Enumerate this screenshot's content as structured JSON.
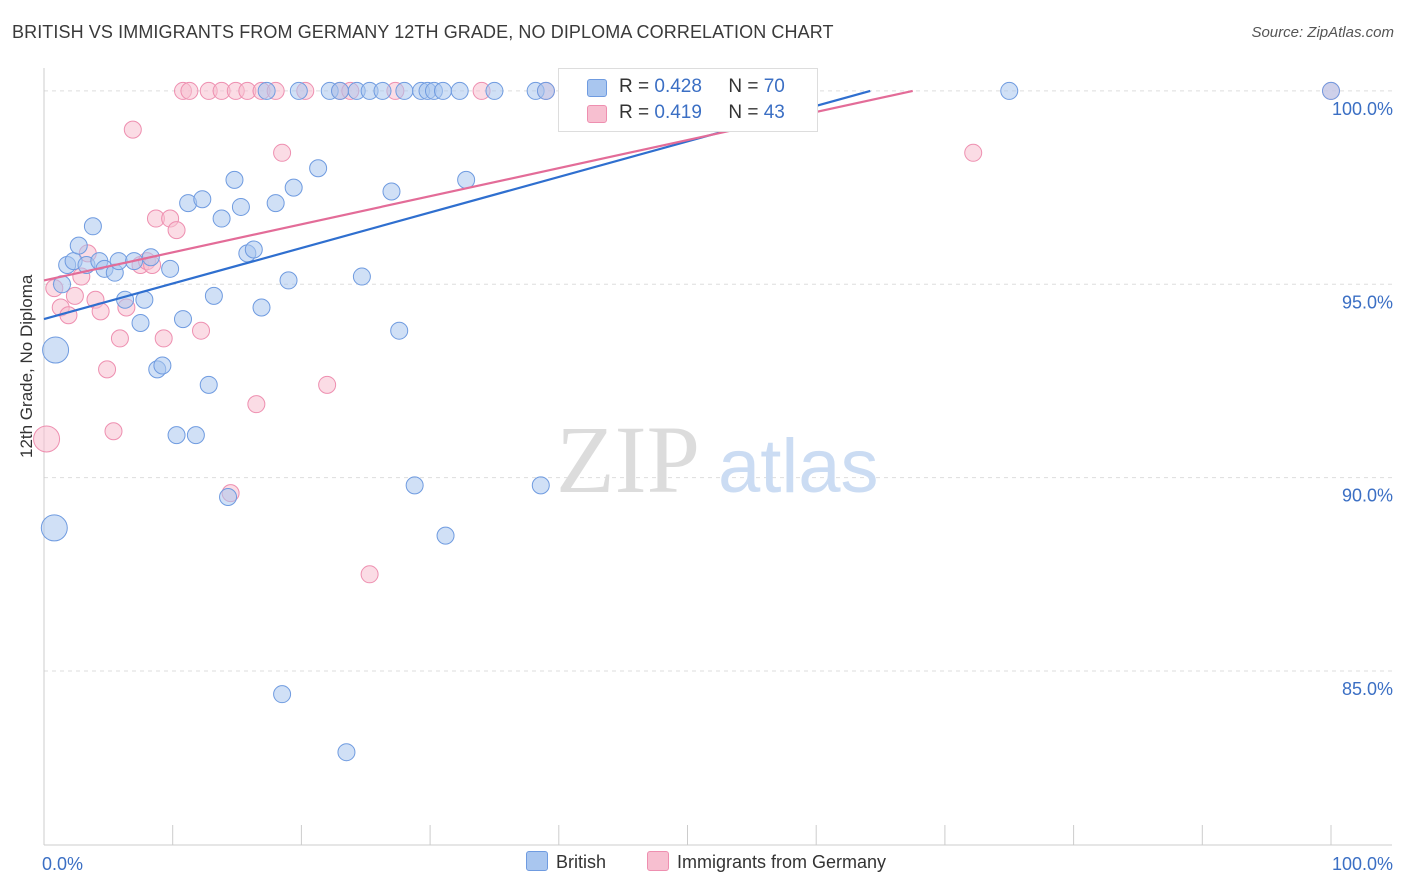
{
  "title": "BRITISH VS IMMIGRANTS FROM GERMANY 12TH GRADE, NO DIPLOMA CORRELATION CHART",
  "source": "Source: ZipAtlas.com",
  "watermark": {
    "zip": "ZIP",
    "atlas": "atlas"
  },
  "colors": {
    "blue_fill": "#a9c6ef",
    "blue_stroke": "#6f9be0",
    "blue_line": "#2f6fcf",
    "pink_fill": "#f7bfd0",
    "pink_stroke": "#ee8fb0",
    "pink_line": "#e36c98",
    "accent_text": "#3b6fc4"
  },
  "legend": {
    "rows": [
      {
        "r_label": "R =",
        "r_value": "0.428",
        "n_label": "N =",
        "n_value": "70"
      },
      {
        "r_label": "R =",
        "r_value": "0.419",
        "n_label": "N =",
        "n_value": "43"
      }
    ]
  },
  "bottom_legend": {
    "series1": "British",
    "series2": "Immigrants from Germany"
  },
  "chart_data": {
    "type": "scatter",
    "title": "BRITISH VS IMMIGRANTS FROM GERMANY 12TH GRADE, NO DIPLOMA CORRELATION CHART",
    "xlabel": "",
    "ylabel": "12th Grade, No Diploma",
    "xlim": [
      0,
      100
    ],
    "ylim": [
      80.5,
      100.8
    ],
    "x_tick_labels": [
      "0.0%",
      "100.0%"
    ],
    "y_ticks": [
      {
        "value": 100,
        "label": "100.0%"
      },
      {
        "value": 95,
        "label": "95.0%"
      },
      {
        "value": 90,
        "label": "90.0%"
      },
      {
        "value": 85,
        "label": "85.0%"
      }
    ],
    "grid": true,
    "legend_position": "top-center",
    "series": [
      {
        "name": "British",
        "trend": {
          "x": [
            0,
            64.2
          ],
          "y": [
            94.1,
            100.0
          ]
        },
        "points": [
          {
            "x": 0.8,
            "y": 88.7,
            "big": 1
          },
          {
            "x": 0.9,
            "y": 93.3,
            "big": 1
          },
          {
            "x": 1.4,
            "y": 95.0
          },
          {
            "x": 1.8,
            "y": 95.5
          },
          {
            "x": 2.3,
            "y": 95.6
          },
          {
            "x": 2.7,
            "y": 96.0
          },
          {
            "x": 3.3,
            "y": 95.5
          },
          {
            "x": 3.8,
            "y": 96.5
          },
          {
            "x": 4.3,
            "y": 95.6
          },
          {
            "x": 4.7,
            "y": 95.4
          },
          {
            "x": 5.5,
            "y": 95.3
          },
          {
            "x": 5.8,
            "y": 95.6
          },
          {
            "x": 6.3,
            "y": 94.6
          },
          {
            "x": 7.0,
            "y": 95.6
          },
          {
            "x": 7.5,
            "y": 94.0
          },
          {
            "x": 7.8,
            "y": 94.6
          },
          {
            "x": 8.3,
            "y": 95.7
          },
          {
            "x": 8.8,
            "y": 92.8
          },
          {
            "x": 9.2,
            "y": 92.9
          },
          {
            "x": 9.8,
            "y": 95.4
          },
          {
            "x": 10.3,
            "y": 91.1
          },
          {
            "x": 10.8,
            "y": 94.1
          },
          {
            "x": 11.2,
            "y": 97.1
          },
          {
            "x": 11.8,
            "y": 91.1
          },
          {
            "x": 12.3,
            "y": 97.2
          },
          {
            "x": 12.8,
            "y": 92.4
          },
          {
            "x": 13.2,
            "y": 94.7
          },
          {
            "x": 13.8,
            "y": 96.7
          },
          {
            "x": 14.3,
            "y": 89.5
          },
          {
            "x": 14.8,
            "y": 97.7
          },
          {
            "x": 15.3,
            "y": 97.0
          },
          {
            "x": 15.8,
            "y": 95.8
          },
          {
            "x": 16.3,
            "y": 95.9
          },
          {
            "x": 16.9,
            "y": 94.4
          },
          {
            "x": 17.3,
            "y": 100.0
          },
          {
            "x": 18.0,
            "y": 97.1
          },
          {
            "x": 18.5,
            "y": 84.4
          },
          {
            "x": 19.0,
            "y": 95.1
          },
          {
            "x": 19.4,
            "y": 97.5
          },
          {
            "x": 19.8,
            "y": 100.0
          },
          {
            "x": 21.3,
            "y": 98.0
          },
          {
            "x": 22.2,
            "y": 100.0
          },
          {
            "x": 23.0,
            "y": 100.0
          },
          {
            "x": 23.5,
            "y": 82.9
          },
          {
            "x": 24.3,
            "y": 100.0
          },
          {
            "x": 24.7,
            "y": 95.2
          },
          {
            "x": 25.3,
            "y": 100.0
          },
          {
            "x": 26.3,
            "y": 100.0
          },
          {
            "x": 27.0,
            "y": 97.4
          },
          {
            "x": 27.6,
            "y": 93.8
          },
          {
            "x": 28.0,
            "y": 100.0
          },
          {
            "x": 28.8,
            "y": 89.8
          },
          {
            "x": 29.3,
            "y": 100.0
          },
          {
            "x": 29.8,
            "y": 100.0
          },
          {
            "x": 30.3,
            "y": 100.0
          },
          {
            "x": 31.0,
            "y": 100.0
          },
          {
            "x": 31.2,
            "y": 88.5
          },
          {
            "x": 32.3,
            "y": 100.0
          },
          {
            "x": 32.8,
            "y": 97.7
          },
          {
            "x": 35.0,
            "y": 100.0
          },
          {
            "x": 38.2,
            "y": 100.0
          },
          {
            "x": 38.6,
            "y": 89.8
          },
          {
            "x": 39.0,
            "y": 100.0
          },
          {
            "x": 42.8,
            "y": 100.0
          },
          {
            "x": 46.3,
            "y": 100.0
          },
          {
            "x": 48.0,
            "y": 100.0
          },
          {
            "x": 51.3,
            "y": 100.0
          },
          {
            "x": 53.0,
            "y": 100.0
          },
          {
            "x": 75.0,
            "y": 100.0
          },
          {
            "x": 100.0,
            "y": 100.0
          }
        ]
      },
      {
        "name": "Immigrants from Germany",
        "trend": {
          "x": [
            0,
            67.5
          ],
          "y": [
            95.1,
            100.0
          ]
        },
        "points": [
          {
            "x": 0.2,
            "y": 91.0,
            "big": 1
          },
          {
            "x": 0.8,
            "y": 94.9
          },
          {
            "x": 1.3,
            "y": 94.4
          },
          {
            "x": 1.9,
            "y": 94.2
          },
          {
            "x": 2.4,
            "y": 94.7
          },
          {
            "x": 2.9,
            "y": 95.2
          },
          {
            "x": 3.4,
            "y": 95.8
          },
          {
            "x": 4.0,
            "y": 94.6
          },
          {
            "x": 4.4,
            "y": 94.3
          },
          {
            "x": 4.9,
            "y": 92.8
          },
          {
            "x": 5.4,
            "y": 91.2
          },
          {
            "x": 5.9,
            "y": 93.6
          },
          {
            "x": 6.4,
            "y": 94.4
          },
          {
            "x": 6.9,
            "y": 99.0
          },
          {
            "x": 7.5,
            "y": 95.5
          },
          {
            "x": 8.0,
            "y": 95.6
          },
          {
            "x": 8.4,
            "y": 95.5
          },
          {
            "x": 8.7,
            "y": 96.7
          },
          {
            "x": 9.3,
            "y": 93.6
          },
          {
            "x": 9.8,
            "y": 96.7
          },
          {
            "x": 10.3,
            "y": 96.4
          },
          {
            "x": 10.8,
            "y": 100.0
          },
          {
            "x": 11.3,
            "y": 100.0
          },
          {
            "x": 12.2,
            "y": 93.8
          },
          {
            "x": 12.8,
            "y": 100.0
          },
          {
            "x": 13.8,
            "y": 100.0
          },
          {
            "x": 14.5,
            "y": 89.6
          },
          {
            "x": 14.9,
            "y": 100.0
          },
          {
            "x": 15.8,
            "y": 100.0
          },
          {
            "x": 16.5,
            "y": 91.9
          },
          {
            "x": 16.9,
            "y": 100.0
          },
          {
            "x": 18.0,
            "y": 100.0
          },
          {
            "x": 18.5,
            "y": 98.4
          },
          {
            "x": 20.3,
            "y": 100.0
          },
          {
            "x": 22.0,
            "y": 92.4
          },
          {
            "x": 23.0,
            "y": 100.0
          },
          {
            "x": 23.8,
            "y": 100.0
          },
          {
            "x": 25.3,
            "y": 87.5
          },
          {
            "x": 27.3,
            "y": 100.0
          },
          {
            "x": 34.0,
            "y": 100.0
          },
          {
            "x": 39.0,
            "y": 100.0
          },
          {
            "x": 72.2,
            "y": 98.4
          },
          {
            "x": 100.0,
            "y": 100.0
          }
        ]
      }
    ]
  }
}
